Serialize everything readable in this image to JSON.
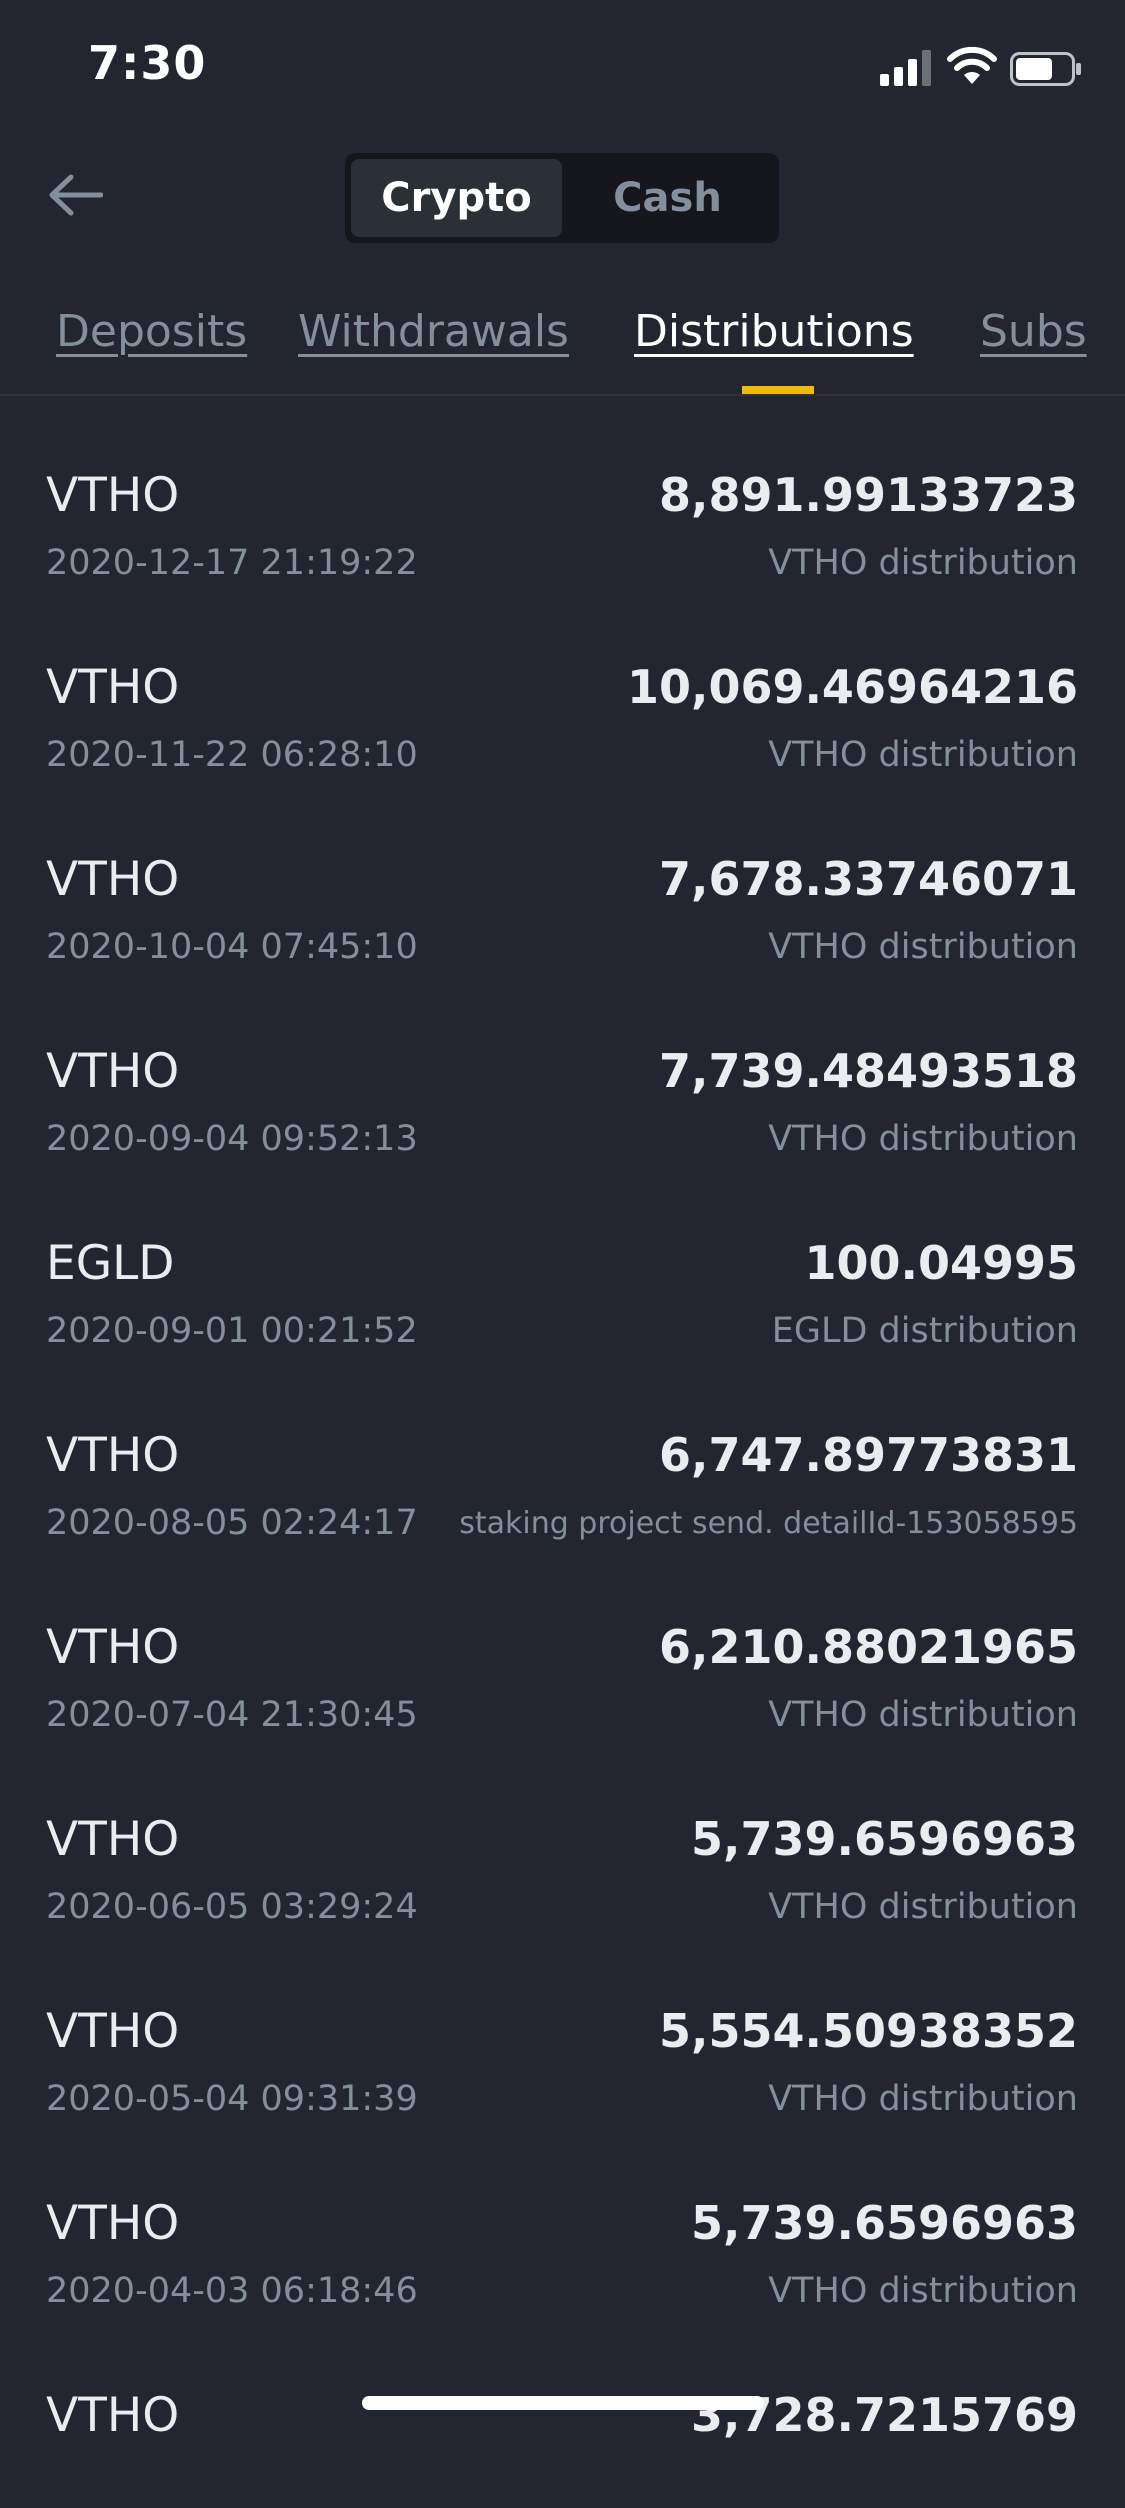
{
  "status_bar": {
    "time": "7:30",
    "icons": [
      "signal-icon",
      "wifi-icon",
      "battery-icon"
    ]
  },
  "header": {
    "back_icon": "arrow-left-icon",
    "segments": [
      {
        "label": "Crypto",
        "active": true
      },
      {
        "label": "Cash",
        "active": false
      }
    ]
  },
  "tabs": [
    {
      "label": "Deposits",
      "active": false
    },
    {
      "label": "Withdrawals",
      "active": false
    },
    {
      "label": "Distributions",
      "active": true
    },
    {
      "label": "Subs",
      "active": false
    }
  ],
  "colors": {
    "background": "#232630",
    "accent": "#f0b90b",
    "text_primary": "#eaecef",
    "text_secondary": "#848e9c"
  },
  "distributions": [
    {
      "asset": "VTHO",
      "time": "2020-12-17 21:19:22",
      "amount": "8,891.99133723",
      "note": "VTHO distribution"
    },
    {
      "asset": "VTHO",
      "time": "2020-11-22 06:28:10",
      "amount": "10,069.46964216",
      "note": "VTHO distribution"
    },
    {
      "asset": "VTHO",
      "time": "2020-10-04 07:45:10",
      "amount": "7,678.33746071",
      "note": "VTHO distribution"
    },
    {
      "asset": "VTHO",
      "time": "2020-09-04 09:52:13",
      "amount": "7,739.48493518",
      "note": "VTHO distribution"
    },
    {
      "asset": "EGLD",
      "time": "2020-09-01 00:21:52",
      "amount": "100.04995",
      "note": "EGLD distribution"
    },
    {
      "asset": "VTHO",
      "time": "2020-08-05 02:24:17",
      "amount": "6,747.89773831",
      "note": "staking project send. detailId-153058595"
    },
    {
      "asset": "VTHO",
      "time": "2020-07-04 21:30:45",
      "amount": "6,210.88021965",
      "note": "VTHO distribution"
    },
    {
      "asset": "VTHO",
      "time": "2020-06-05 03:29:24",
      "amount": "5,739.6596963",
      "note": "VTHO distribution"
    },
    {
      "asset": "VTHO",
      "time": "2020-05-04 09:31:39",
      "amount": "5,554.50938352",
      "note": "VTHO distribution"
    },
    {
      "asset": "VTHO",
      "time": "2020-04-03 06:18:46",
      "amount": "5,739.6596963",
      "note": "VTHO distribution"
    },
    {
      "asset": "VTHO",
      "time": "",
      "amount": "3,728.7215769",
      "note": ""
    }
  ]
}
